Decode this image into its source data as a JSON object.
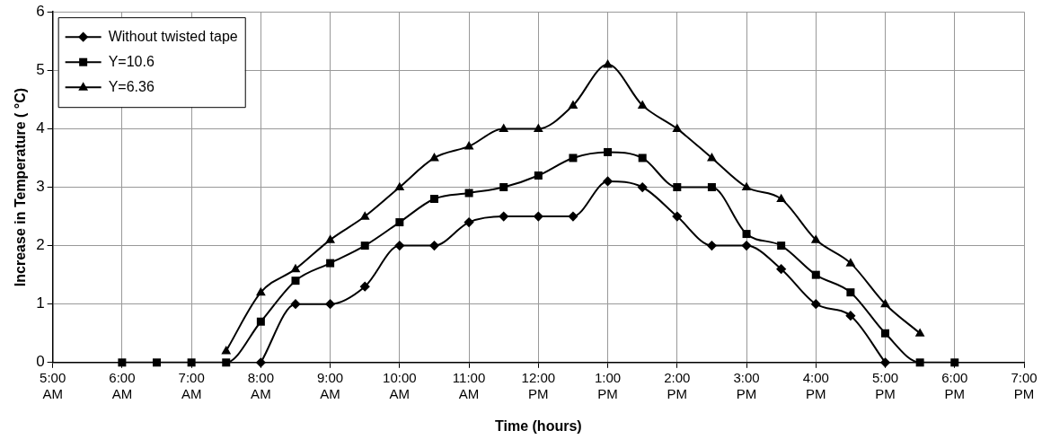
{
  "chart_data": {
    "type": "line",
    "xlabel": "Time (hours)",
    "ylabel": "Increase in Temperature ( °C)",
    "x": [
      6,
      6.5,
      7,
      7.5,
      8,
      8.5,
      9,
      9.5,
      10,
      10.5,
      11,
      11.5,
      12,
      12.5,
      13,
      13.5,
      14,
      14.5,
      15,
      15.5,
      16,
      16.5,
      17,
      17.5,
      18
    ],
    "series": [
      {
        "name": "Without twisted tape",
        "color": "#000000",
        "marker": "diamond",
        "values": [
          null,
          null,
          null,
          null,
          0,
          1.0,
          1.0,
          1.3,
          2.0,
          2.0,
          2.4,
          2.5,
          2.5,
          2.5,
          3.1,
          3.0,
          2.5,
          2.0,
          2.0,
          1.6,
          1.0,
          0.8,
          0,
          null,
          null
        ]
      },
      {
        "name": "Y=10.6",
        "color": "#000000",
        "marker": "square",
        "values": [
          0,
          0,
          0,
          0,
          0.7,
          1.4,
          1.7,
          2.0,
          2.4,
          2.8,
          2.9,
          3.0,
          3.2,
          3.5,
          3.6,
          3.5,
          3.0,
          3.0,
          2.2,
          2.0,
          1.5,
          1.2,
          0.5,
          0,
          0
        ]
      },
      {
        "name": "Y=6.36",
        "color": "#000000",
        "marker": "triangle",
        "values": [
          null,
          null,
          null,
          0.2,
          1.2,
          1.6,
          2.1,
          2.5,
          3.0,
          3.5,
          3.7,
          4.0,
          4.0,
          4.4,
          5.1,
          4.4,
          4.0,
          3.5,
          3.0,
          2.8,
          2.1,
          1.7,
          1.0,
          0.5,
          null
        ]
      }
    ],
    "xlim": [
      5,
      19
    ],
    "xticks": [
      {
        "value": 5,
        "label": "5:00 AM"
      },
      {
        "value": 6,
        "label": "6:00 AM"
      },
      {
        "value": 7,
        "label": "7:00 AM"
      },
      {
        "value": 8,
        "label": "8:00 AM"
      },
      {
        "value": 9,
        "label": "9:00 AM"
      },
      {
        "value": 10,
        "label": "10:00 AM"
      },
      {
        "value": 11,
        "label": "11:00 AM"
      },
      {
        "value": 12,
        "label": "12:00 PM"
      },
      {
        "value": 13,
        "label": "1:00 PM"
      },
      {
        "value": 14,
        "label": "2:00 PM"
      },
      {
        "value": 15,
        "label": "3:00 PM"
      },
      {
        "value": 16,
        "label": "4:00 PM"
      },
      {
        "value": 17,
        "label": "5:00 PM"
      },
      {
        "value": 18,
        "label": "6:00 PM"
      },
      {
        "value": 19,
        "label": "7:00 PM"
      }
    ],
    "ylim": [
      0,
      6
    ],
    "yticks": [
      0,
      1,
      2,
      3,
      4,
      5,
      6
    ],
    "grid": true,
    "legend": "top left",
    "line_style": "solid"
  }
}
